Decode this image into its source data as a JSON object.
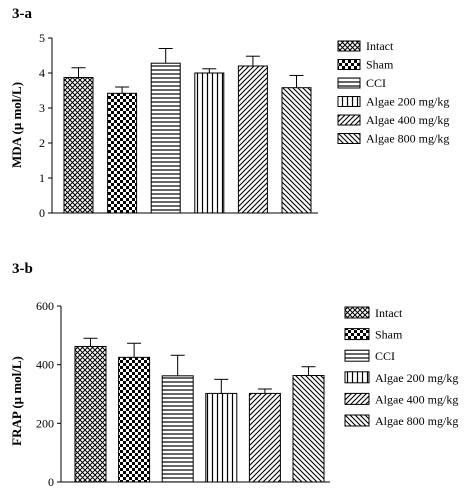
{
  "chart_data": [
    {
      "type": "bar",
      "title": "3-a",
      "xlabel": "",
      "ylabel": "MDA (μ mol/L)",
      "ylim": [
        0,
        5
      ],
      "yticks": [
        0,
        1,
        2,
        3,
        4,
        5
      ],
      "categories": [
        "Intact",
        "Sham",
        "CCI",
        "Algae 200 mg/kg",
        "Algae 400 mg/kg",
        "Algae 800 mg/kg"
      ],
      "values": [
        3.87,
        3.42,
        4.28,
        4.0,
        4.2,
        3.58
      ],
      "errors": [
        0.28,
        0.18,
        0.42,
        0.12,
        0.28,
        0.35
      ],
      "legend_position": "right",
      "patterns": [
        "crosshatch",
        "checker",
        "horizontal",
        "vertical",
        "diagonal-up",
        "diagonal-down"
      ]
    },
    {
      "type": "bar",
      "title": "3-b",
      "xlabel": "",
      "ylabel": "FRAP (μ mol/L)",
      "ylim": [
        0,
        600
      ],
      "yticks": [
        0,
        200,
        400,
        600
      ],
      "categories": [
        "Intact",
        "Sham",
        "CCI",
        "Algae 200 mg/kg",
        "Algae 400 mg/kg",
        "Algae 800 mg/kg"
      ],
      "values": [
        462,
        425,
        362,
        302,
        302,
        363
      ],
      "errors": [
        28,
        48,
        70,
        48,
        15,
        30
      ],
      "legend_position": "right",
      "patterns": [
        "crosshatch",
        "checker",
        "horizontal",
        "vertical",
        "diagonal-up",
        "diagonal-down"
      ]
    }
  ]
}
